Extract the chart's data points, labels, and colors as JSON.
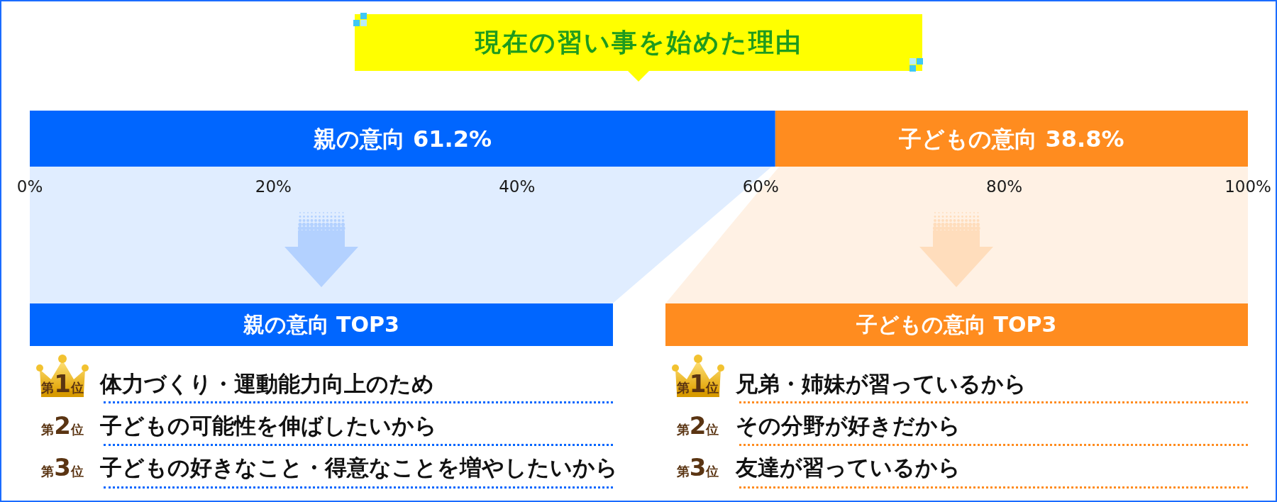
{
  "chart_data": {
    "type": "bar",
    "title": "現在の習い事を始めた理由",
    "orientation": "horizontal",
    "stacked": true,
    "categories": [
      null
    ],
    "series": [
      {
        "name": "親の意向",
        "color": "#0066ff",
        "values": [
          61.2
        ],
        "value_labels": [
          "61.2%"
        ]
      },
      {
        "name": "子どもの意向",
        "color": "#ff8c1f",
        "values": [
          38.8
        ],
        "value_labels": [
          "38.8%"
        ]
      }
    ],
    "xlim": [
      0,
      100
    ],
    "xticks": [
      {
        "value": 0,
        "label": "0%"
      },
      {
        "value": 20,
        "label": "20%"
      },
      {
        "value": 40,
        "label": "40%"
      },
      {
        "value": 60,
        "label": "60%"
      },
      {
        "value": 80,
        "label": "80%"
      },
      {
        "value": 100,
        "label": "100%"
      }
    ],
    "tick_labels": "x",
    "grid": false,
    "annotations": [
      "親の意向 TOP3",
      "第1位",
      "体力づくり・運動能力向上のため",
      "第2位",
      "子どもの可能性を伸ばしたいから",
      "第3位",
      "子どもの好きなこと・得意なことを増やしたいから",
      "子どもの意向 TOP3",
      "第1位",
      "兄弟・姉妹が習っているから",
      "第2位",
      "その分野が好きだから",
      "第3位",
      "友達が習っているから"
    ]
  }
}
